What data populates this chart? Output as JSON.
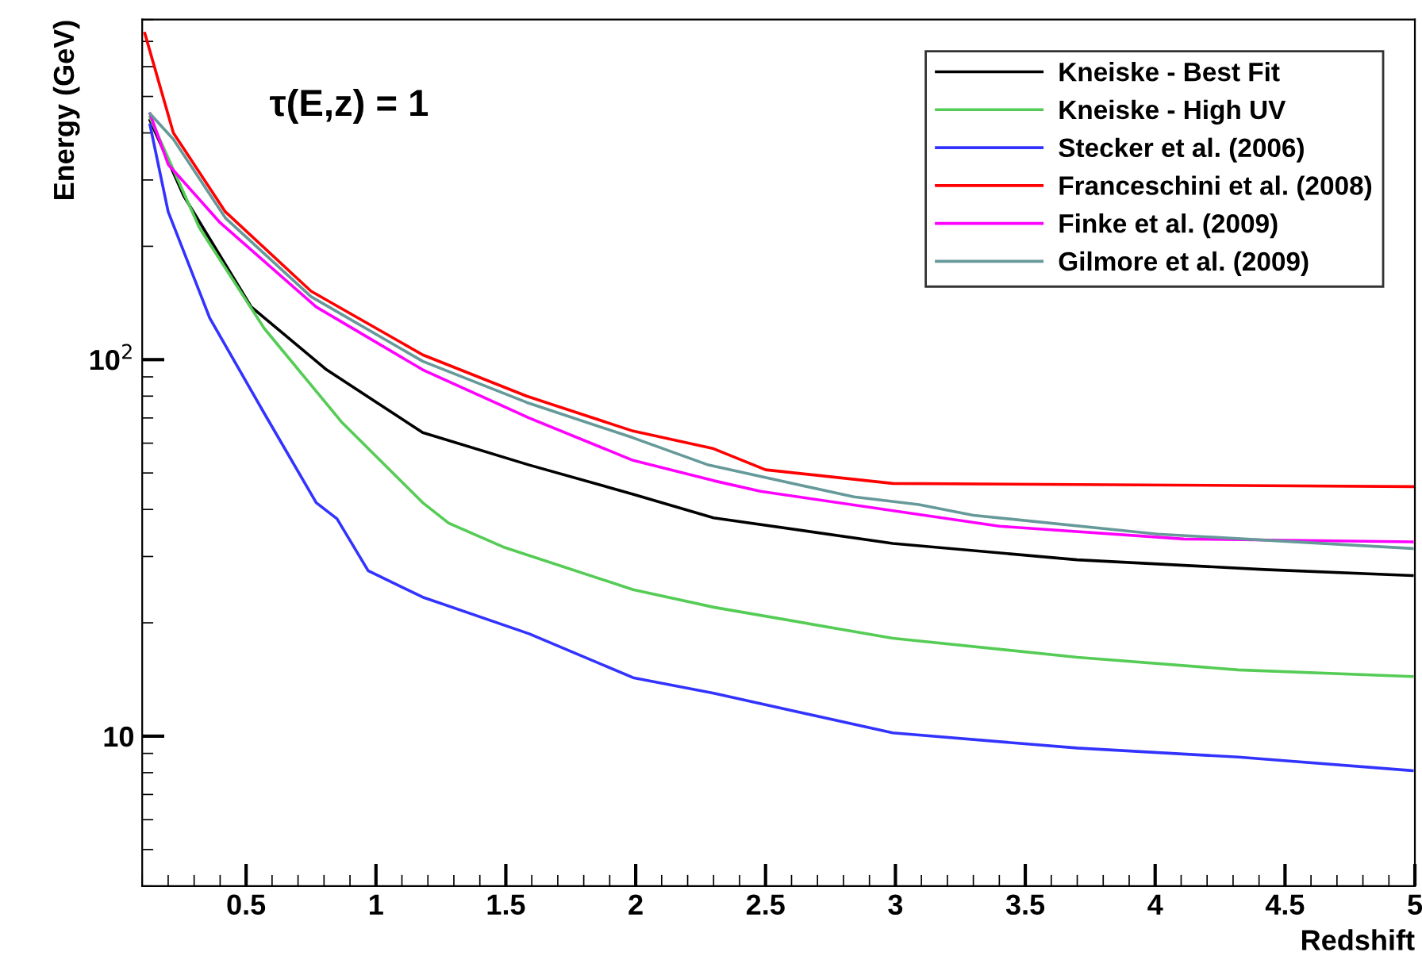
{
  "chart_data": {
    "type": "line",
    "xlabel": "Redshift",
    "ylabel": "Energy (GeV)",
    "annotations": [
      "τ(E,z) = 1"
    ],
    "log": "y",
    "xlim": [
      0.1,
      5
    ],
    "ylim": [
      4,
      800
    ],
    "xticks": [
      0.5,
      1,
      1.5,
      2,
      2.5,
      3,
      3.5,
      4,
      4.5,
      5
    ],
    "yticks": [
      10,
      {
        "value": 100,
        "label": "10$^{2}$"
      }
    ],
    "grid": false,
    "legend": "top right",
    "marker": "none",
    "line_style": "solid",
    "series": [
      {
        "name": "Kneiske - Best Fit",
        "color": "#000000",
        "x": [
          0.13,
          0.26,
          0.52,
          0.81,
          1.18,
          1.59,
          1.99,
          2.3,
          2.99,
          3.7,
          4.42,
          4.99
        ],
        "values": [
          432,
          272,
          138,
          94,
          64,
          52.5,
          43.9,
          38,
          32.5,
          29.4,
          27.7,
          26.7
        ]
      },
      {
        "name": "Kneiske - High UV",
        "color": "#55cc55",
        "x": [
          0.13,
          0.32,
          0.57,
          0.87,
          1.18,
          1.28,
          1.49,
          1.99,
          2.3,
          2.99,
          3.7,
          4.32,
          4.99
        ],
        "values": [
          440,
          224,
          121,
          68,
          41.7,
          36.8,
          31.8,
          24.5,
          22,
          18.2,
          16.2,
          15,
          14.4
        ]
      },
      {
        "name": "Stecker et al. (2006)",
        "color": "#3333ff",
        "x": [
          0.13,
          0.2,
          0.36,
          0.57,
          0.77,
          0.85,
          0.97,
          1.18,
          1.59,
          1.99,
          2.3,
          2.99,
          3.7,
          4.32,
          4.99
        ],
        "values": [
          420,
          247,
          129,
          72,
          41.7,
          37.8,
          27.5,
          23.4,
          18.7,
          14.3,
          13,
          10.2,
          9.3,
          8.8,
          8.1
        ]
      },
      {
        "name": "Franceschini et al. (2008)",
        "color": "#ff0000",
        "x": [
          0.11,
          0.22,
          0.42,
          0.75,
          1.18,
          1.58,
          1.99,
          2.3,
          2.5,
          2.99,
          5
        ],
        "values": [
          736,
          400,
          247,
          152,
          103,
          80,
          64.6,
          58,
          51,
          46.9,
          46
        ]
      },
      {
        "name": "Finke et al. (2009)",
        "color": "#ff00ff",
        "x": [
          0.13,
          0.2,
          0.4,
          0.77,
          1.18,
          1.59,
          1.99,
          2.3,
          2.48,
          3.4,
          4.11,
          4.99
        ],
        "values": [
          450,
          330,
          231,
          138,
          94,
          70,
          54,
          47.7,
          44.7,
          36.1,
          33.4,
          32.8
        ]
      },
      {
        "name": "Gilmore et al. (2009)",
        "color": "#669999",
        "x": [
          0.13,
          0.22,
          0.42,
          0.75,
          1.18,
          1.58,
          1.99,
          2.28,
          2.84,
          3.09,
          3.3,
          4.01,
          4.99
        ],
        "values": [
          450,
          385,
          238,
          147,
          99,
          77,
          62,
          52.5,
          43.2,
          41.2,
          38.6,
          34.4,
          31.5
        ]
      }
    ]
  }
}
